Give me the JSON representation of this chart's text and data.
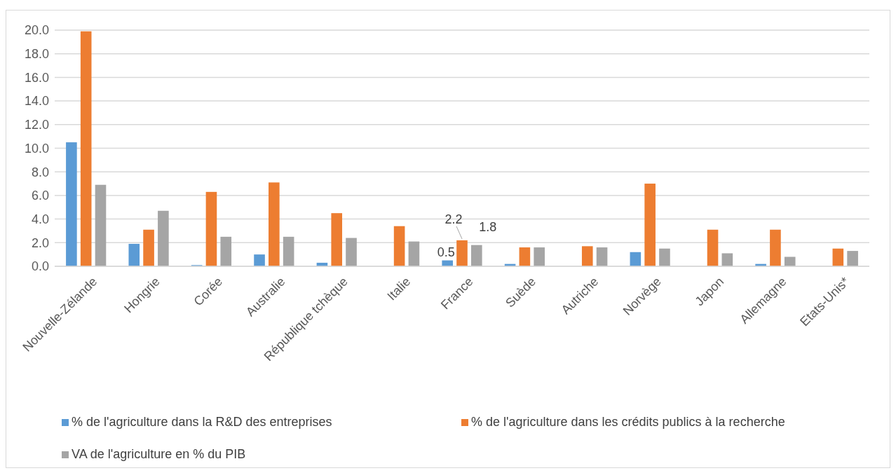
{
  "chart_data": {
    "type": "bar",
    "categories": [
      "Nouvelle-Zélande",
      "Hongrie",
      "Corée",
      "Australie",
      "République tchèque",
      "Italie",
      "France",
      "Suède",
      "Autriche",
      "Norvège",
      "Japon",
      "Allemagne",
      "Etats-Unis*"
    ],
    "series": [
      {
        "name": "% de l'agriculture dans la R&D des entreprises",
        "color": "#5b9bd5",
        "values": [
          10.5,
          1.9,
          0.1,
          1.0,
          0.3,
          null,
          0.5,
          0.2,
          null,
          1.2,
          null,
          0.2,
          null
        ],
        "value_labels": [
          null,
          null,
          null,
          null,
          null,
          null,
          "0.5",
          null,
          null,
          null,
          null,
          null,
          null
        ]
      },
      {
        "name": "% de l'agriculture dans les crédits publics à la recherche",
        "color": "#ed7d31",
        "values": [
          19.9,
          3.1,
          6.3,
          7.1,
          4.5,
          3.4,
          2.2,
          1.6,
          1.7,
          7.0,
          3.1,
          3.1,
          1.5
        ],
        "value_labels": [
          null,
          null,
          null,
          null,
          null,
          null,
          "2.2",
          null,
          null,
          null,
          null,
          null,
          null
        ]
      },
      {
        "name": "VA de l'agriculture en % du PIB",
        "color": "#a5a5a5",
        "values": [
          6.9,
          4.7,
          2.5,
          2.5,
          2.4,
          2.1,
          1.8,
          1.6,
          1.6,
          1.5,
          1.1,
          0.8,
          1.3
        ],
        "value_labels": [
          null,
          null,
          null,
          null,
          null,
          null,
          "1.8",
          null,
          null,
          null,
          null,
          null,
          null
        ]
      }
    ],
    "ylim": [
      0,
      20
    ],
    "yticks": [
      {
        "value": 0,
        "label": "0.0"
      },
      {
        "value": 2,
        "label": "2.0"
      },
      {
        "value": 4,
        "label": "4.0"
      },
      {
        "value": 6,
        "label": "6.0"
      },
      {
        "value": 8,
        "label": "8.0"
      },
      {
        "value": 10,
        "label": "10.0"
      },
      {
        "value": 12,
        "label": "12.0"
      },
      {
        "value": 14,
        "label": "14.0"
      },
      {
        "value": 16,
        "label": "16.0"
      },
      {
        "value": 18,
        "label": "18.0"
      },
      {
        "value": 20,
        "label": "20.0"
      }
    ],
    "grid": "y",
    "legend": "bottom"
  }
}
